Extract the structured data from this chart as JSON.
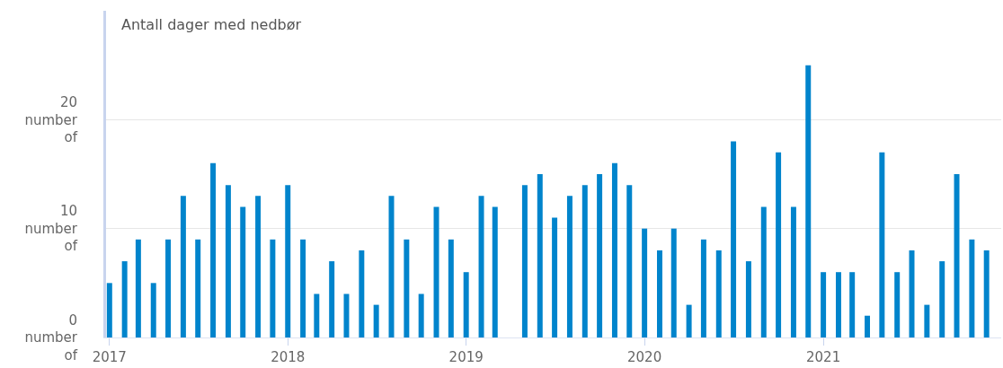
{
  "chart_data": {
    "type": "bar",
    "title": "Antall dager med nedbør",
    "x": [
      "2017-01",
      "2017-02",
      "2017-03",
      "2017-04",
      "2017-05",
      "2017-06",
      "2017-07",
      "2017-08",
      "2017-09",
      "2017-10",
      "2017-11",
      "2017-12",
      "2018-01",
      "2018-02",
      "2018-03",
      "2018-04",
      "2018-05",
      "2018-06",
      "2018-07",
      "2018-08",
      "2018-09",
      "2018-10",
      "2018-11",
      "2018-12",
      "2019-01",
      "2019-02",
      "2019-03",
      "2019-04",
      "2019-05",
      "2019-06",
      "2019-07",
      "2019-08",
      "2019-09",
      "2019-10",
      "2019-11",
      "2019-12",
      "2020-01",
      "2020-02",
      "2020-03",
      "2020-04",
      "2020-05",
      "2020-06",
      "2020-07",
      "2020-08",
      "2020-09",
      "2020-10",
      "2020-11",
      "2020-12",
      "2021-01",
      "2021-02",
      "2021-03",
      "2021-04",
      "2021-05",
      "2021-06",
      "2021-07",
      "2021-08",
      "2021-09",
      "2021-10",
      "2021-11",
      "2021-12"
    ],
    "values": [
      5,
      7,
      9,
      5,
      9,
      13,
      9,
      16,
      14,
      12,
      13,
      9,
      14,
      9,
      4,
      7,
      4,
      8,
      3,
      13,
      9,
      4,
      12,
      9,
      6,
      13,
      12,
      null,
      14,
      15,
      11,
      13,
      14,
      15,
      16,
      14,
      10,
      8,
      10,
      3,
      9,
      8,
      18,
      7,
      12,
      17,
      12,
      25,
      6,
      6,
      6,
      2,
      17,
      6,
      8,
      3,
      7,
      15,
      9,
      8
    ],
    "color": "#0084cc",
    "xlim": [
      "2016-12-25",
      "2021-12-31"
    ],
    "xticks": [
      {
        "value": "2017-01-01",
        "label": "2017"
      },
      {
        "value": "2018-01-01",
        "label": "2018"
      },
      {
        "value": "2019-01-01",
        "label": "2019"
      },
      {
        "value": "2020-01-01",
        "label": "2020"
      },
      {
        "value": "2021-01-01",
        "label": "2021"
      }
    ],
    "ylim": [
      0,
      30
    ],
    "yticks": [
      {
        "value": 0,
        "label": "0 number of"
      },
      {
        "value": 10,
        "label": "10 number of"
      },
      {
        "value": 20,
        "label": "20 number of"
      }
    ],
    "grid": "y"
  }
}
